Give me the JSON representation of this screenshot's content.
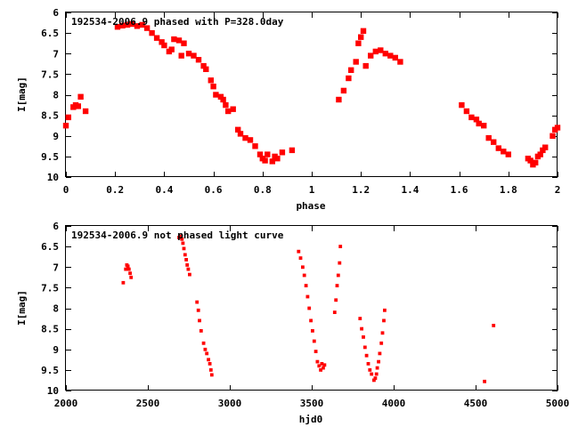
{
  "chart_data": [
    {
      "type": "scatter",
      "title": "192534-2006.9 phased with P=328.0day",
      "xlabel": "phase",
      "ylabel": "I[mag]",
      "xlim": [
        0,
        2
      ],
      "ylim": [
        10,
        6
      ],
      "y_inverted": true,
      "xticks": [
        "0",
        "0.2",
        "0.4",
        "0.6",
        "0.8",
        "1",
        "1.2",
        "1.4",
        "1.6",
        "1.8",
        "2"
      ],
      "yticks": [
        "6",
        "6.5",
        "7",
        "7.5",
        "8",
        "8.5",
        "9",
        "9.5",
        "10"
      ],
      "grid": false,
      "marker_color": "#ff0000",
      "marker_size": "large",
      "points": [
        [
          0.0,
          8.75
        ],
        [
          0.01,
          8.55
        ],
        [
          0.03,
          8.3
        ],
        [
          0.04,
          8.25
        ],
        [
          0.05,
          8.28
        ],
        [
          0.06,
          8.05
        ],
        [
          0.08,
          8.4
        ],
        [
          0.21,
          6.35
        ],
        [
          0.23,
          6.32
        ],
        [
          0.25,
          6.3
        ],
        [
          0.27,
          6.28
        ],
        [
          0.29,
          6.33
        ],
        [
          0.31,
          6.3
        ],
        [
          0.33,
          6.38
        ],
        [
          0.35,
          6.5
        ],
        [
          0.37,
          6.62
        ],
        [
          0.39,
          6.72
        ],
        [
          0.4,
          6.8
        ],
        [
          0.42,
          6.95
        ],
        [
          0.43,
          6.9
        ],
        [
          0.44,
          6.65
        ],
        [
          0.46,
          6.68
        ],
        [
          0.47,
          7.05
        ],
        [
          0.48,
          6.75
        ],
        [
          0.5,
          7.0
        ],
        [
          0.52,
          7.05
        ],
        [
          0.54,
          7.15
        ],
        [
          0.56,
          7.3
        ],
        [
          0.57,
          7.38
        ],
        [
          0.59,
          7.65
        ],
        [
          0.6,
          7.8
        ],
        [
          0.61,
          8.0
        ],
        [
          0.63,
          8.05
        ],
        [
          0.64,
          8.12
        ],
        [
          0.65,
          8.25
        ],
        [
          0.66,
          8.4
        ],
        [
          0.68,
          8.35
        ],
        [
          0.7,
          8.85
        ],
        [
          0.71,
          8.95
        ],
        [
          0.73,
          9.05
        ],
        [
          0.75,
          9.1
        ],
        [
          0.77,
          9.25
        ],
        [
          0.79,
          9.45
        ],
        [
          0.8,
          9.55
        ],
        [
          0.81,
          9.6
        ],
        [
          0.82,
          9.45
        ],
        [
          0.84,
          9.62
        ],
        [
          0.85,
          9.5
        ],
        [
          0.86,
          9.55
        ],
        [
          0.88,
          9.4
        ],
        [
          0.92,
          9.35
        ],
        [
          1.11,
          8.12
        ],
        [
          1.13,
          7.9
        ],
        [
          1.15,
          7.6
        ],
        [
          1.16,
          7.4
        ],
        [
          1.18,
          7.2
        ],
        [
          1.19,
          6.75
        ],
        [
          1.2,
          6.6
        ],
        [
          1.21,
          6.45
        ],
        [
          1.22,
          7.3
        ],
        [
          1.24,
          7.05
        ],
        [
          1.26,
          6.95
        ],
        [
          1.28,
          6.92
        ],
        [
          1.3,
          7.0
        ],
        [
          1.32,
          7.05
        ],
        [
          1.34,
          7.1
        ],
        [
          1.36,
          7.2
        ],
        [
          1.61,
          8.25
        ],
        [
          1.63,
          8.4
        ],
        [
          1.65,
          8.55
        ],
        [
          1.67,
          8.6
        ],
        [
          1.68,
          8.7
        ],
        [
          1.7,
          8.75
        ],
        [
          1.72,
          9.05
        ],
        [
          1.74,
          9.15
        ],
        [
          1.76,
          9.3
        ],
        [
          1.78,
          9.38
        ],
        [
          1.8,
          9.45
        ],
        [
          1.88,
          9.55
        ],
        [
          1.89,
          9.6
        ],
        [
          1.9,
          9.7
        ],
        [
          1.91,
          9.65
        ],
        [
          1.92,
          9.5
        ],
        [
          1.93,
          9.45
        ],
        [
          1.94,
          9.35
        ],
        [
          1.95,
          9.28
        ],
        [
          1.98,
          9.0
        ],
        [
          1.99,
          8.85
        ],
        [
          2.0,
          8.8
        ]
      ]
    },
    {
      "type": "scatter",
      "title": "192534-2006.9 not phased light curve",
      "xlabel": "hjd0",
      "ylabel": "I[mag]",
      "xlim": [
        2000,
        5000
      ],
      "ylim": [
        10,
        6
      ],
      "y_inverted": true,
      "xticks": [
        "2000",
        "2500",
        "3000",
        "3500",
        "4000",
        "4500",
        "5000"
      ],
      "yticks": [
        "6",
        "6.5",
        "7",
        "7.5",
        "8",
        "8.5",
        "9",
        "9.5",
        "10"
      ],
      "grid": false,
      "marker_color": "#ff0000",
      "marker_size": "small",
      "points": [
        [
          2350,
          7.38
        ],
        [
          2365,
          7.05
        ],
        [
          2372,
          6.95
        ],
        [
          2378,
          6.98
        ],
        [
          2385,
          7.05
        ],
        [
          2392,
          7.15
        ],
        [
          2398,
          7.25
        ],
        [
          2690,
          6.28
        ],
        [
          2700,
          6.25
        ],
        [
          2708,
          6.32
        ],
        [
          2714,
          6.42
        ],
        [
          2720,
          6.55
        ],
        [
          2727,
          6.7
        ],
        [
          2734,
          6.82
        ],
        [
          2740,
          6.95
        ],
        [
          2747,
          7.05
        ],
        [
          2755,
          7.18
        ],
        [
          2800,
          7.85
        ],
        [
          2808,
          8.05
        ],
        [
          2815,
          8.3
        ],
        [
          2825,
          8.55
        ],
        [
          2840,
          8.85
        ],
        [
          2850,
          9.0
        ],
        [
          2860,
          9.1
        ],
        [
          2870,
          9.25
        ],
        [
          2878,
          9.35
        ],
        [
          2885,
          9.5
        ],
        [
          2890,
          9.62
        ],
        [
          3420,
          6.62
        ],
        [
          3432,
          6.78
        ],
        [
          3445,
          7.0
        ],
        [
          3455,
          7.2
        ],
        [
          3465,
          7.45
        ],
        [
          3475,
          7.72
        ],
        [
          3485,
          8.0
        ],
        [
          3495,
          8.3
        ],
        [
          3505,
          8.55
        ],
        [
          3515,
          8.8
        ],
        [
          3525,
          9.05
        ],
        [
          3535,
          9.3
        ],
        [
          3545,
          9.4
        ],
        [
          3555,
          9.5
        ],
        [
          3562,
          9.35
        ],
        [
          3570,
          9.45
        ],
        [
          3578,
          9.38
        ],
        [
          3640,
          8.1
        ],
        [
          3648,
          7.8
        ],
        [
          3655,
          7.45
        ],
        [
          3662,
          7.2
        ],
        [
          3670,
          6.9
        ],
        [
          3675,
          6.5
        ],
        [
          3795,
          8.25
        ],
        [
          3805,
          8.5
        ],
        [
          3815,
          8.7
        ],
        [
          3825,
          8.95
        ],
        [
          3835,
          9.15
        ],
        [
          3845,
          9.35
        ],
        [
          3855,
          9.5
        ],
        [
          3865,
          9.6
        ],
        [
          3880,
          9.75
        ],
        [
          3888,
          9.7
        ],
        [
          3895,
          9.6
        ],
        [
          3900,
          9.45
        ],
        [
          3908,
          9.3
        ],
        [
          3915,
          9.1
        ],
        [
          3925,
          8.85
        ],
        [
          3932,
          8.6
        ],
        [
          3940,
          8.3
        ],
        [
          3945,
          8.05
        ],
        [
          4555,
          9.78
        ],
        [
          4610,
          8.42
        ]
      ]
    }
  ]
}
